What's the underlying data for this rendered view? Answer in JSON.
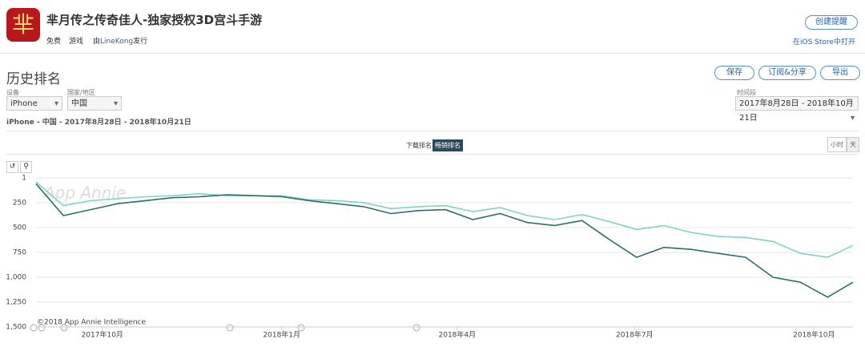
{
  "header": {
    "title": "芈月传之传奇佳人-独家授权3D宫斗手游",
    "price": "免费",
    "category": "游戏",
    "publisher_prefix": "由",
    "publisher": "LineKong",
    "publisher_suffix": "发行",
    "alert_button": "创建提醒",
    "store_link": "在iOS Store中打开"
  },
  "toolbar": {
    "section_title": "历史排名",
    "save": "保存",
    "subscribe": "订阅&分享",
    "export": "导出",
    "device_label": "设备",
    "device": "iPhone",
    "country_label": "国家/地区",
    "country": "中国",
    "period_label": "时间段",
    "period": "2017年8月28日 - 2018年10月21日",
    "summary": "iPhone - 中国 - 2017年8月28日 - 2018年10月21日",
    "tab_downloads": "下载排名",
    "tab_grossing": "畅销排名",
    "hour": "小时",
    "day": "天"
  },
  "chart_data": {
    "type": "line",
    "watermark": "App Annie",
    "copyright": "©2018 App Annie Intelligence",
    "x": [
      "2017-08-28",
      "2017-09-11",
      "2017-09-25",
      "2017-10-09",
      "2017-10-23",
      "2017-11-06",
      "2017-11-20",
      "2017-12-04",
      "2017-12-18",
      "2018-01-01",
      "2018-01-15",
      "2018-01-29",
      "2018-02-12",
      "2018-02-26",
      "2018-03-12",
      "2018-03-26",
      "2018-04-09",
      "2018-04-23",
      "2018-05-07",
      "2018-05-21",
      "2018-06-04",
      "2018-06-18",
      "2018-07-02",
      "2018-07-16",
      "2018-07-30",
      "2018-08-13",
      "2018-08-27",
      "2018-09-10",
      "2018-09-24",
      "2018-10-08",
      "2018-10-21"
    ],
    "series": [
      {
        "color": "#2f6e6a",
        "values": [
          60,
          380,
          320,
          260,
          230,
          200,
          190,
          170,
          180,
          190,
          230,
          260,
          290,
          360,
          330,
          320,
          420,
          360,
          450,
          480,
          430,
          620,
          800,
          700,
          720,
          760,
          800,
          1000,
          1050,
          1200,
          1050
        ]
      },
      {
        "color": "#84d1c5",
        "values": [
          40,
          280,
          230,
          210,
          190,
          180,
          160,
          180,
          180,
          180,
          220,
          230,
          250,
          310,
          290,
          280,
          340,
          300,
          380,
          420,
          370,
          440,
          520,
          480,
          550,
          590,
          600,
          640,
          760,
          800,
          680
        ]
      }
    ],
    "xlim": [
      "2017-08-28",
      "2018-10-21"
    ],
    "xticks": [
      {
        "value": "2017-10-01",
        "label": "2017年10月"
      },
      {
        "value": "2018-01-01",
        "label": "2018年1月"
      },
      {
        "value": "2018-04-01",
        "label": "2018年4月"
      },
      {
        "value": "2018-07-01",
        "label": "2018年7月"
      },
      {
        "value": "2018-10-01",
        "label": "2018年10月"
      }
    ],
    "ylim": [
      1,
      1500
    ],
    "inverted": true,
    "yticks": [
      1,
      250,
      500,
      750,
      {
        "value": 1000,
        "label": "1,000"
      },
      {
        "value": 1250,
        "label": "1,250"
      },
      {
        "value": 1500,
        "label": "1,500"
      }
    ],
    "grid": true
  }
}
